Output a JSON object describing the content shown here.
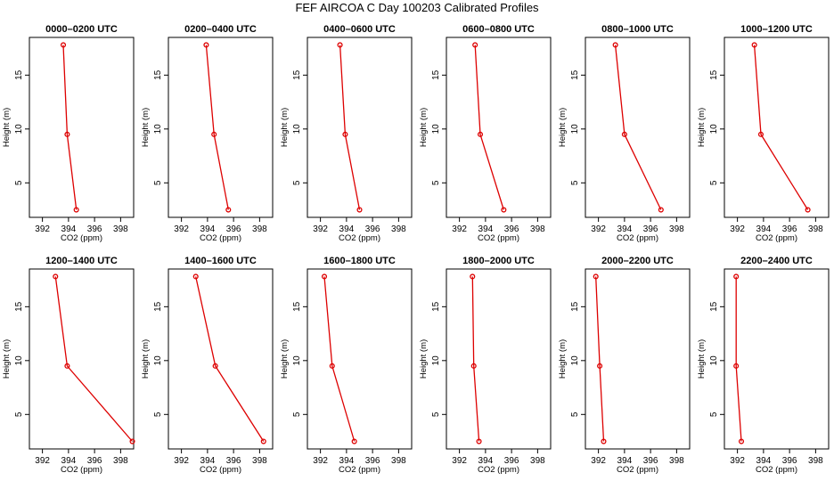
{
  "figure": {
    "title": "FEF AIRCOA C  Day 100203  Calibrated Profiles"
  },
  "colors": {
    "series": "#dd0000",
    "axis": "#000000",
    "background": "#ffffff"
  },
  "chart_data": [
    {
      "type": "line",
      "title": "0000–0200 UTC",
      "xlabel": "CO2 (ppm)",
      "ylabel": "Height (m)",
      "xlim": [
        391,
        399
      ],
      "ylim": [
        1.8,
        18.5
      ],
      "xticks": [
        392,
        394,
        396,
        398
      ],
      "yticks": [
        5,
        10,
        15
      ],
      "x": [
        393.6,
        393.9,
        394.6
      ],
      "y": [
        17.8,
        9.5,
        2.5
      ]
    },
    {
      "type": "line",
      "title": "0200–0400 UTC",
      "xlabel": "CO2 (ppm)",
      "ylabel": "Height (m)",
      "xlim": [
        391,
        399
      ],
      "ylim": [
        1.8,
        18.5
      ],
      "xticks": [
        392,
        394,
        396,
        398
      ],
      "yticks": [
        5,
        10,
        15
      ],
      "x": [
        393.9,
        394.5,
        395.6
      ],
      "y": [
        17.8,
        9.5,
        2.5
      ]
    },
    {
      "type": "line",
      "title": "0400–0600 UTC",
      "xlabel": "CO2 (ppm)",
      "ylabel": "Height (m)",
      "xlim": [
        391,
        399
      ],
      "ylim": [
        1.8,
        18.5
      ],
      "xticks": [
        392,
        394,
        396,
        398
      ],
      "yticks": [
        5,
        10,
        15
      ],
      "x": [
        393.5,
        393.9,
        395.0
      ],
      "y": [
        17.8,
        9.5,
        2.5
      ]
    },
    {
      "type": "line",
      "title": "0600–0800 UTC",
      "xlabel": "CO2 (ppm)",
      "ylabel": "Height (m)",
      "xlim": [
        391,
        399
      ],
      "ylim": [
        1.8,
        18.5
      ],
      "xticks": [
        392,
        394,
        396,
        398
      ],
      "yticks": [
        5,
        10,
        15
      ],
      "x": [
        393.2,
        393.6,
        395.4
      ],
      "y": [
        17.8,
        9.5,
        2.5
      ]
    },
    {
      "type": "line",
      "title": "0800–1000 UTC",
      "xlabel": "CO2 (ppm)",
      "ylabel": "Height (m)",
      "xlim": [
        391,
        399
      ],
      "ylim": [
        1.8,
        18.5
      ],
      "xticks": [
        392,
        394,
        396,
        398
      ],
      "yticks": [
        5,
        10,
        15
      ],
      "x": [
        393.3,
        394.0,
        396.8
      ],
      "y": [
        17.8,
        9.5,
        2.5
      ]
    },
    {
      "type": "line",
      "title": "1000–1200 UTC",
      "xlabel": "CO2 (ppm)",
      "ylabel": "Height (m)",
      "xlim": [
        391,
        399
      ],
      "ylim": [
        1.8,
        18.5
      ],
      "xticks": [
        392,
        394,
        396,
        398
      ],
      "yticks": [
        5,
        10,
        15
      ],
      "x": [
        393.3,
        393.8,
        397.4
      ],
      "y": [
        17.8,
        9.5,
        2.5
      ]
    },
    {
      "type": "line",
      "title": "1200–1400 UTC",
      "xlabel": "CO2 (ppm)",
      "ylabel": "Height (m)",
      "xlim": [
        391,
        399
      ],
      "ylim": [
        1.8,
        18.5
      ],
      "xticks": [
        392,
        394,
        396,
        398
      ],
      "yticks": [
        5,
        10,
        15
      ],
      "x": [
        393.0,
        393.9,
        398.9
      ],
      "y": [
        17.8,
        9.5,
        2.5
      ]
    },
    {
      "type": "line",
      "title": "1400–1600 UTC",
      "xlabel": "CO2 (ppm)",
      "ylabel": "Height (m)",
      "xlim": [
        391,
        399
      ],
      "ylim": [
        1.8,
        18.5
      ],
      "xticks": [
        392,
        394,
        396,
        398
      ],
      "yticks": [
        5,
        10,
        15
      ],
      "x": [
        393.1,
        394.6,
        398.3
      ],
      "y": [
        17.8,
        9.5,
        2.5
      ]
    },
    {
      "type": "line",
      "title": "1600–1800 UTC",
      "xlabel": "CO2 (ppm)",
      "ylabel": "Height (m)",
      "xlim": [
        391,
        399
      ],
      "ylim": [
        1.8,
        18.5
      ],
      "xticks": [
        392,
        394,
        396,
        398
      ],
      "yticks": [
        5,
        10,
        15
      ],
      "x": [
        392.3,
        392.9,
        394.6
      ],
      "y": [
        17.8,
        9.5,
        2.5
      ]
    },
    {
      "type": "line",
      "title": "1800–2000 UTC",
      "xlabel": "CO2 (ppm)",
      "ylabel": "Height (m)",
      "xlim": [
        391,
        399
      ],
      "ylim": [
        1.8,
        18.5
      ],
      "xticks": [
        392,
        394,
        396,
        398
      ],
      "yticks": [
        5,
        10,
        15
      ],
      "x": [
        393.0,
        393.1,
        393.5
      ],
      "y": [
        17.8,
        9.5,
        2.5
      ]
    },
    {
      "type": "line",
      "title": "2000–2200 UTC",
      "xlabel": "CO2 (ppm)",
      "ylabel": "Height (m)",
      "xlim": [
        391,
        399
      ],
      "ylim": [
        1.8,
        18.5
      ],
      "xticks": [
        392,
        394,
        396,
        398
      ],
      "yticks": [
        5,
        10,
        15
      ],
      "x": [
        391.8,
        392.1,
        392.4
      ],
      "y": [
        17.8,
        9.5,
        2.5
      ]
    },
    {
      "type": "line",
      "title": "2200–2400 UTC",
      "xlabel": "CO2 (ppm)",
      "ylabel": "Height (m)",
      "xlim": [
        391,
        399
      ],
      "ylim": [
        1.8,
        18.5
      ],
      "xticks": [
        392,
        394,
        396,
        398
      ],
      "yticks": [
        5,
        10,
        15
      ],
      "x": [
        391.9,
        391.9,
        392.3
      ],
      "y": [
        17.8,
        9.5,
        2.5
      ]
    }
  ]
}
